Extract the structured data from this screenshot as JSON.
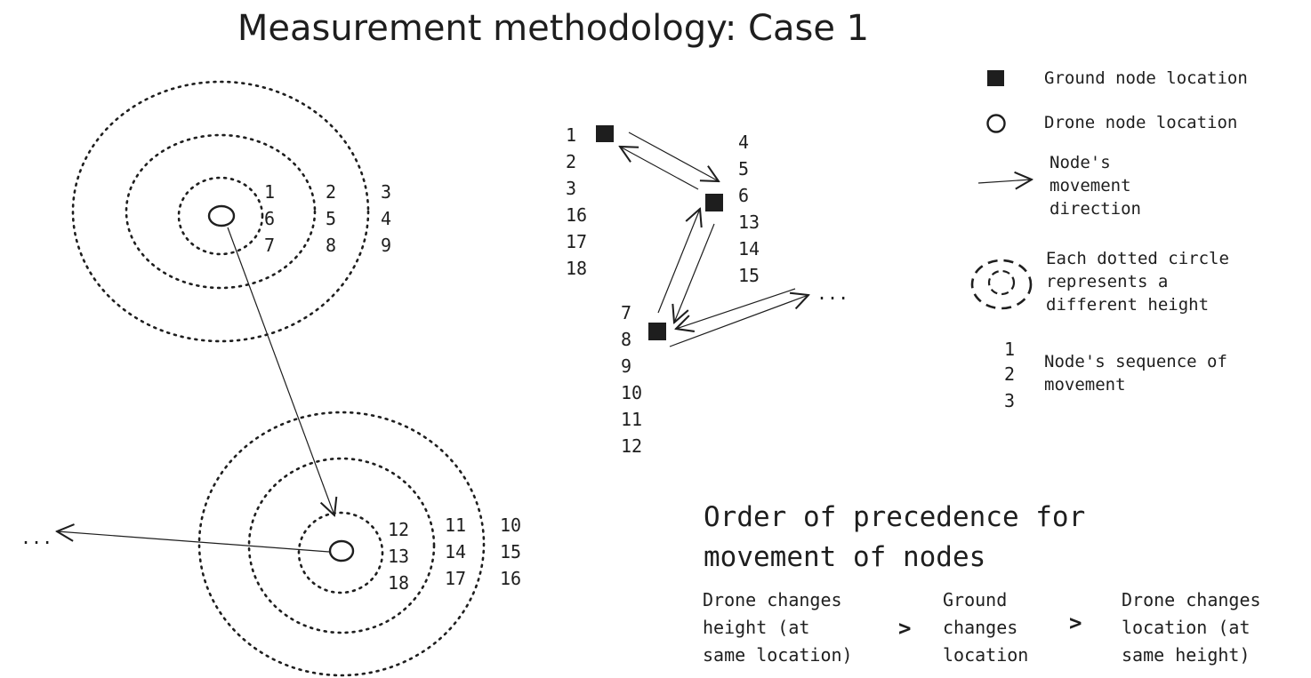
{
  "title": "Measurement methodology: Case 1",
  "drone_cluster_top": {
    "inner": [
      "1",
      "6",
      "7"
    ],
    "middle": [
      "2",
      "5",
      "8"
    ],
    "outer": [
      "3",
      "4",
      "9"
    ]
  },
  "drone_cluster_bottom": {
    "inner": [
      "12",
      "13",
      "18"
    ],
    "middle": [
      "11",
      "14",
      "17"
    ],
    "outer": [
      "10",
      "15",
      "16"
    ],
    "continuation": "..."
  },
  "ground_nodes": {
    "node_a": [
      "1",
      "2",
      "3",
      "16",
      "17",
      "18"
    ],
    "node_b": [
      "4",
      "5",
      "6",
      "13",
      "14",
      "15"
    ],
    "node_c": [
      "7",
      "8",
      "9",
      "10",
      "11",
      "12"
    ],
    "continuation": "..."
  },
  "legend": {
    "ground": "Ground node location",
    "drone": "Drone node location",
    "direction": [
      "Node's",
      "movement",
      "direction"
    ],
    "height": [
      "Each dotted circle",
      "represents a",
      "different height"
    ],
    "sequence_numbers": [
      "1",
      "2",
      "3"
    ],
    "sequence": [
      "Node's sequence of",
      "movement"
    ]
  },
  "order": {
    "heading": [
      "Order of precedence for",
      "movement of nodes"
    ],
    "first": [
      "Drone changes",
      "height (at",
      "same location)"
    ],
    "second": [
      "Ground",
      "changes",
      "location"
    ],
    "third": [
      "Drone changes",
      "location (at",
      "same height)"
    ],
    "separator": ">"
  }
}
